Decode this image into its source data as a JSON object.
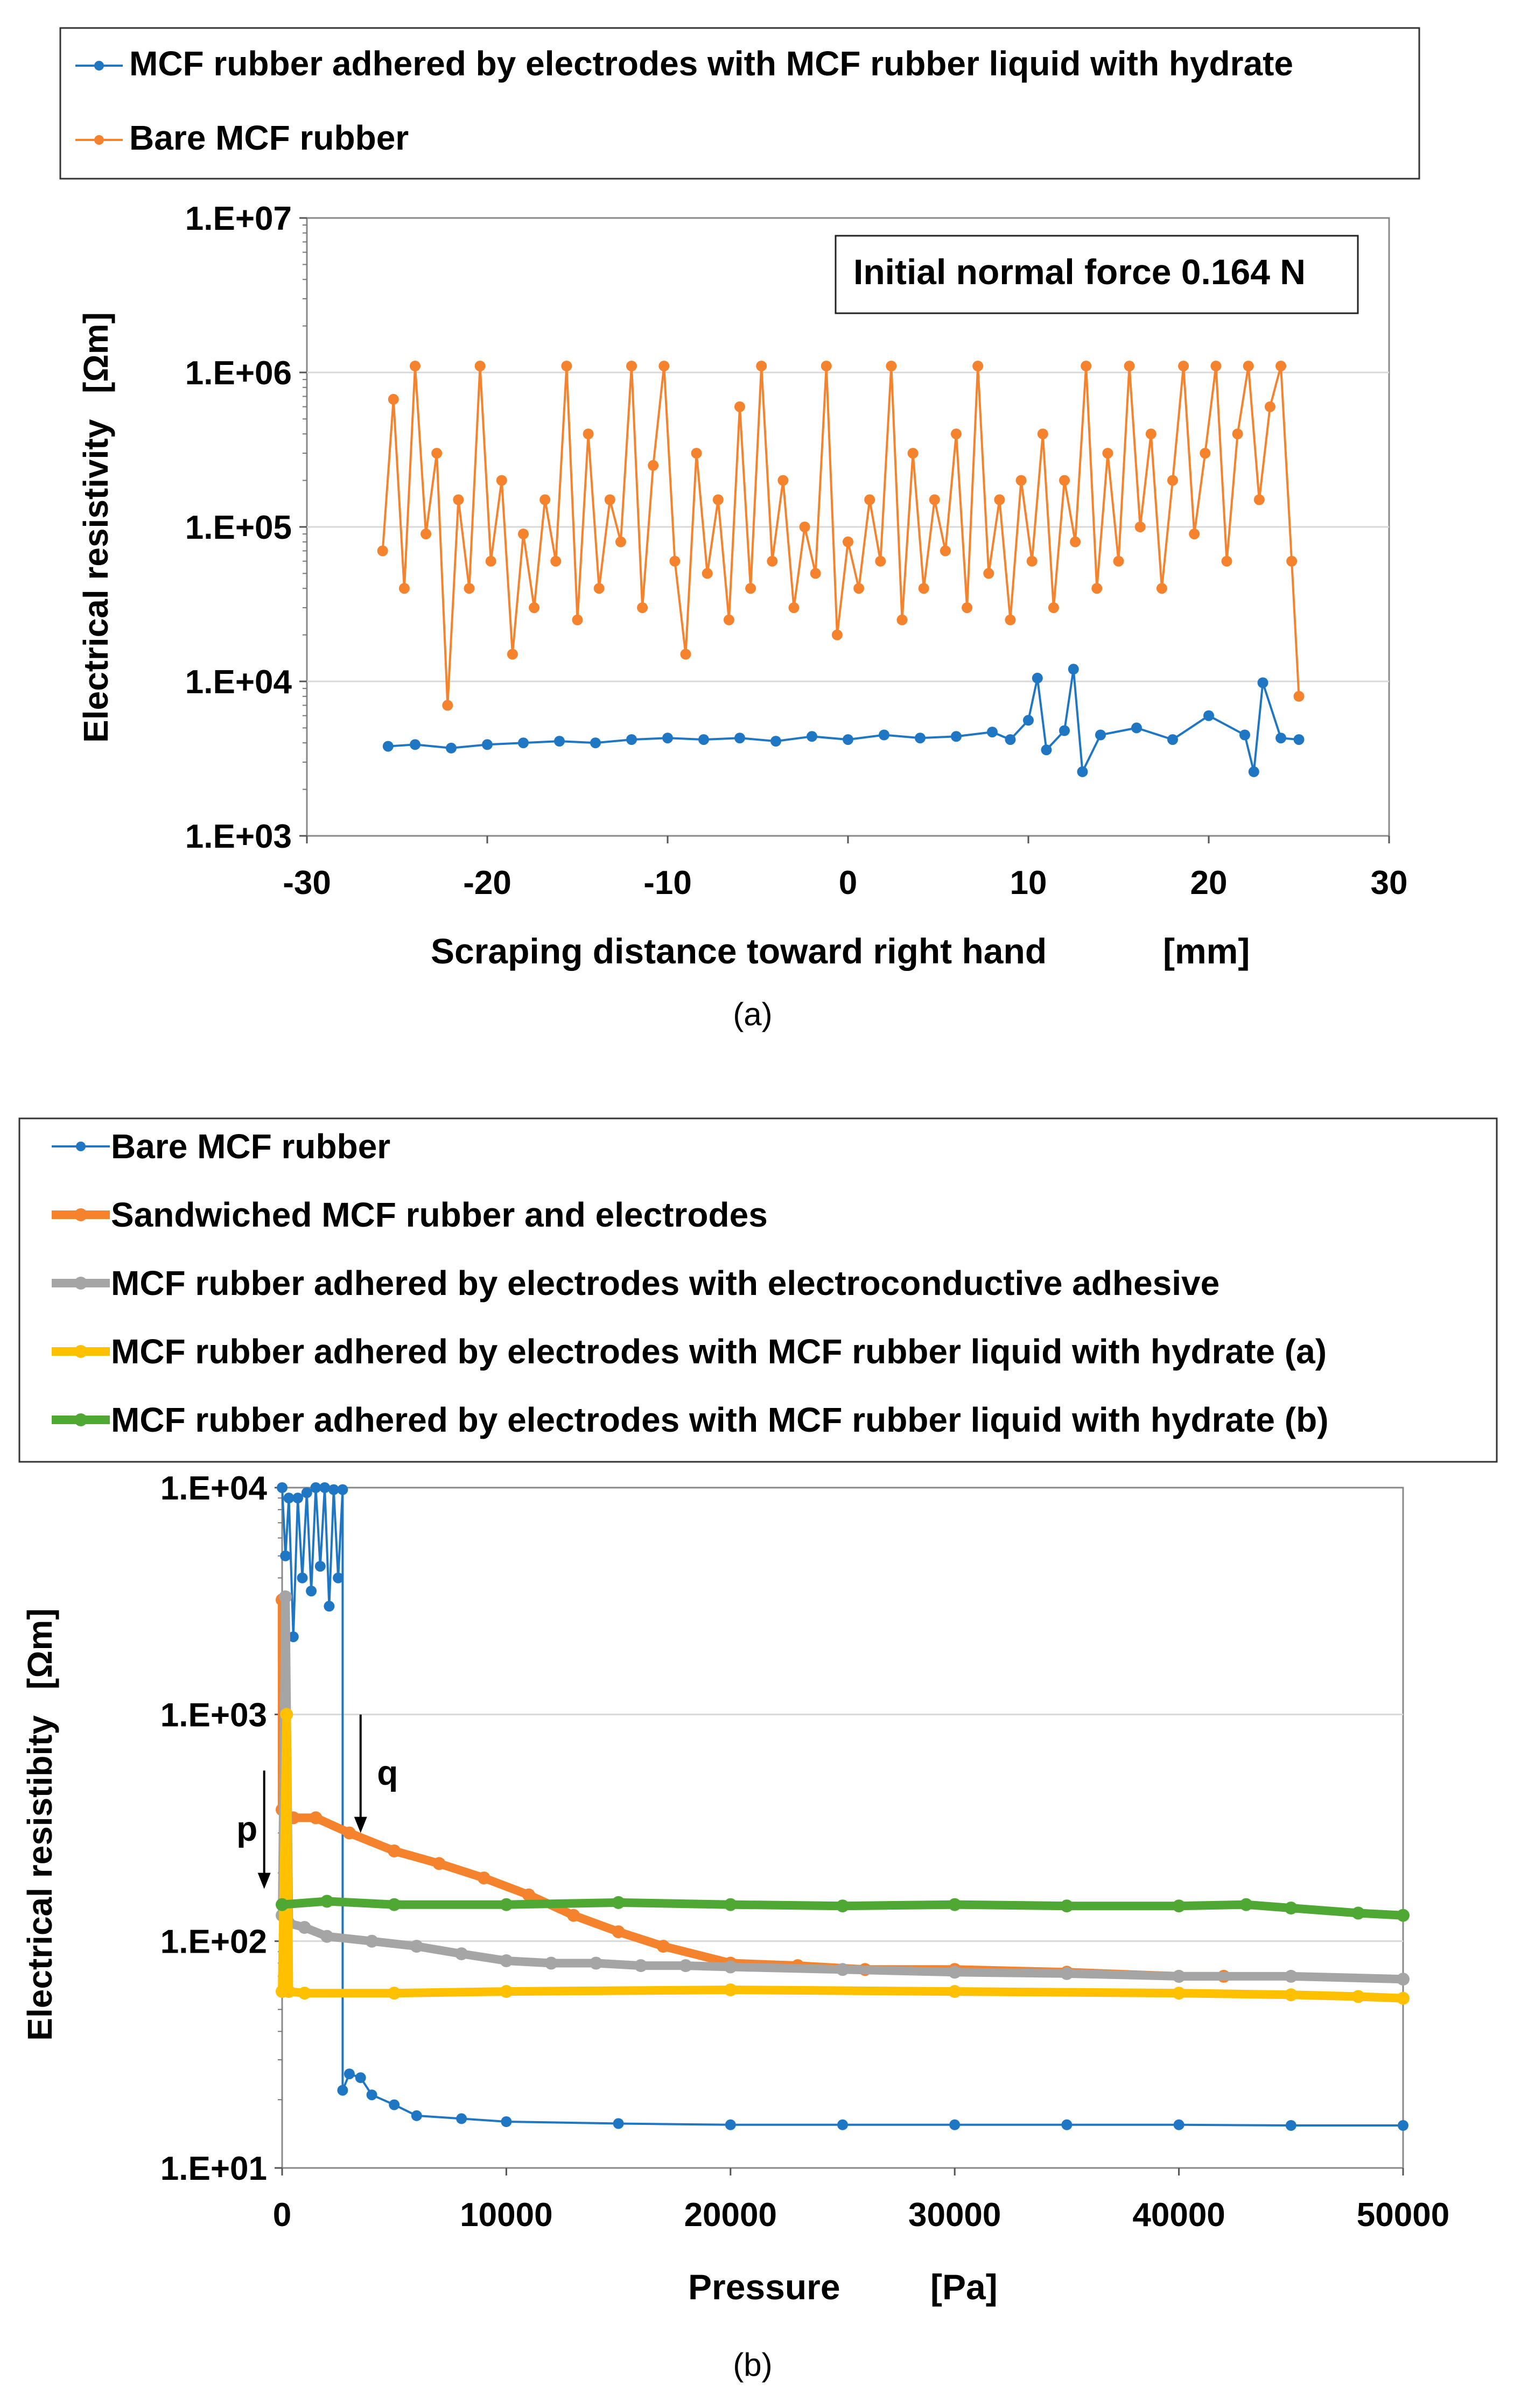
{
  "chart_data": [
    {
      "panel_label": "(a)",
      "type": "line",
      "xlabel": "Scraping distance toward right hand",
      "xunit": "[mm]",
      "ylabel": "Electrical resistivity",
      "yunit": "[Ωm]",
      "yscale": "log",
      "xlim": [
        -30,
        30
      ],
      "ylim": [
        1000,
        10000000
      ],
      "x_ticks": [
        "-30",
        "-20",
        "-10",
        "0",
        "10",
        "20",
        "30"
      ],
      "y_ticks": [
        "1.E+03",
        "1.E+04",
        "1.E+05",
        "1.E+06",
        "1.E+07"
      ],
      "annotation": "Initial normal force 0.164 N",
      "legend": [
        "MCF rubber adhered by electrodes with MCF rubber liquid with hydrate",
        "Bare MCF rubber"
      ],
      "series": [
        {
          "name": "MCF rubber adhered by electrodes with MCF rubber liquid with hydrate",
          "color": "#1f77c4",
          "x": [
            -25.5,
            -24,
            -22,
            -20,
            -18,
            -16,
            -14,
            -12,
            -10,
            -8,
            -6,
            -4,
            -2,
            0,
            2,
            4,
            6,
            8,
            9,
            10,
            10.5,
            11,
            12,
            12.5,
            13,
            14,
            16,
            18,
            20,
            22,
            22.5,
            23,
            24,
            25
          ],
          "y": [
            3800,
            3900,
            3700,
            3900,
            4000,
            4100,
            4000,
            4200,
            4300,
            4200,
            4300,
            4100,
            4400,
            4200,
            4500,
            4300,
            4400,
            4700,
            4200,
            5600,
            10500,
            3600,
            4800,
            12000,
            2600,
            4500,
            5000,
            4200,
            6000,
            4500,
            2600,
            9800,
            4300,
            4200
          ]
        },
        {
          "name": "Bare MCF rubber",
          "color": "#f5822d",
          "x": [
            -25.8,
            -25.2,
            -24.6,
            -24.0,
            -23.4,
            -22.8,
            -22.2,
            -21.6,
            -21.0,
            -20.4,
            -19.8,
            -19.2,
            -18.6,
            -18.0,
            -17.4,
            -16.8,
            -16.2,
            -15.6,
            -15.0,
            -14.4,
            -13.8,
            -13.2,
            -12.6,
            -12.0,
            -11.4,
            -10.8,
            -10.2,
            -9.6,
            -9.0,
            -8.4,
            -7.8,
            -7.2,
            -6.6,
            -6.0,
            -5.4,
            -4.8,
            -4.2,
            -3.6,
            -3.0,
            -2.4,
            -1.8,
            -1.2,
            -0.6,
            0.0,
            0.6,
            1.2,
            1.8,
            2.4,
            3.0,
            3.6,
            4.2,
            4.8,
            5.4,
            6.0,
            6.6,
            7.2,
            7.8,
            8.4,
            9.0,
            9.6,
            10.2,
            10.8,
            11.4,
            12.0,
            12.6,
            13.2,
            13.8,
            14.4,
            15.0,
            15.6,
            16.2,
            16.8,
            17.4,
            18.0,
            18.6,
            19.2,
            19.8,
            20.4,
            21.0,
            21.6,
            22.2,
            22.8,
            23.4,
            24.0,
            24.6,
            25.0
          ],
          "y": [
            70000,
            670000,
            40000,
            1100000,
            90000,
            300000,
            7000,
            150000,
            40000,
            1100000,
            60000,
            200000,
            15000,
            90000,
            30000,
            150000,
            60000,
            1100000,
            25000,
            400000,
            40000,
            150000,
            80000,
            1100000,
            30000,
            250000,
            1100000,
            60000,
            15000,
            300000,
            50000,
            150000,
            25000,
            600000,
            40000,
            1100000,
            60000,
            200000,
            30000,
            100000,
            50000,
            1100000,
            20000,
            80000,
            40000,
            150000,
            60000,
            1100000,
            25000,
            300000,
            40000,
            150000,
            70000,
            400000,
            30000,
            1100000,
            50000,
            150000,
            25000,
            200000,
            60000,
            400000,
            30000,
            200000,
            80000,
            1100000,
            40000,
            300000,
            60000,
            1100000,
            100000,
            400000,
            40000,
            200000,
            1100000,
            90000,
            300000,
            1100000,
            60000,
            400000,
            1100000,
            150000,
            600000,
            1100000,
            60000,
            8000
          ]
        }
      ]
    },
    {
      "panel_label": "(b)",
      "type": "line",
      "xlabel": "Pressure",
      "xunit": "[Pa]",
      "ylabel": "Electrical resistibity",
      "yunit": "[Ωm]",
      "yscale": "log",
      "xlim": [
        0,
        50000
      ],
      "ylim": [
        10,
        10000
      ],
      "x_ticks": [
        "0",
        "10000",
        "20000",
        "30000",
        "40000",
        "50000"
      ],
      "y_ticks": [
        "1.E+01",
        "1.E+02",
        "1.E+03",
        "1.E+04"
      ],
      "annotations": [
        {
          "text": "p",
          "arrow_to": [
            -800,
            170
          ]
        },
        {
          "text": "q",
          "arrow_to": [
            3500,
            300
          ]
        }
      ],
      "legend": [
        "Bare MCF rubber",
        "Sandwiched MCF rubber and electrodes",
        "MCF rubber adhered by electrodes with electroconductive adhesive",
        "MCF rubber adhered by electrodes with MCF rubber liquid with hydrate (a)",
        "MCF rubber adhered by electrodes with MCF rubber liquid with hydrate (b)"
      ],
      "series": [
        {
          "name": "Bare MCF rubber",
          "color": "#1f77c4",
          "x": [
            0,
            150,
            300,
            500,
            700,
            900,
            1100,
            1300,
            1500,
            1700,
            1900,
            2100,
            2300,
            2500,
            2700,
            2700,
            3000,
            3500,
            4000,
            5000,
            6000,
            8000,
            10000,
            15000,
            20000,
            25000,
            30000,
            35000,
            40000,
            45000,
            50000
          ],
          "y": [
            10000,
            5000,
            9000,
            2200,
            9000,
            4000,
            9500,
            3500,
            10000,
            4500,
            10000,
            3000,
            9800,
            4000,
            9800,
            22,
            26,
            25,
            21,
            19,
            17,
            16.5,
            16,
            15.7,
            15.5,
            15.5,
            15.5,
            15.5,
            15.5,
            15.4,
            15.4
          ]
        },
        {
          "name": "Sandwiched MCF rubber and electrodes",
          "color": "#f5822d",
          "x": [
            0,
            0,
            500,
            1500,
            3000,
            5000,
            7000,
            9000,
            11000,
            13000,
            15000,
            17000,
            20000,
            23000,
            26000,
            30000,
            35000,
            40000,
            42000
          ],
          "y": [
            3200,
            380,
            350,
            350,
            300,
            250,
            220,
            190,
            160,
            130,
            110,
            95,
            80,
            78,
            75,
            75,
            73,
            70,
            70
          ]
        },
        {
          "name": "MCF rubber adhered by electrodes with electroconductive adhesive",
          "color": "#a5a5a5",
          "x": [
            0,
            150,
            300,
            1000,
            2000,
            4000,
            6000,
            8000,
            10000,
            12000,
            14000,
            16000,
            18000,
            20000,
            25000,
            30000,
            35000,
            40000,
            45000,
            50000
          ],
          "y": [
            130,
            3300,
            120,
            115,
            105,
            100,
            95,
            88,
            82,
            80,
            80,
            78,
            78,
            77,
            75,
            73,
            72,
            70,
            70,
            68
          ]
        },
        {
          "name": "MCF rubber adhered by electrodes with MCF rubber liquid with hydrate (a)",
          "color": "#ffc000",
          "x": [
            0,
            200,
            300,
            1000,
            5000,
            10000,
            20000,
            30000,
            40000,
            45000,
            48000,
            50000
          ],
          "y": [
            60,
            1000,
            60,
            59,
            59,
            60,
            61,
            60,
            59,
            58,
            57,
            56
          ]
        },
        {
          "name": "MCF rubber adhered by electrodes with MCF rubber liquid with hydrate (b)",
          "color": "#4ea833",
          "x": [
            0,
            2000,
            5000,
            10000,
            15000,
            20000,
            25000,
            30000,
            35000,
            40000,
            43000,
            45000,
            48000,
            50000
          ],
          "y": [
            145,
            150,
            145,
            145,
            148,
            145,
            143,
            145,
            143,
            143,
            145,
            140,
            133,
            130
          ]
        }
      ]
    }
  ]
}
